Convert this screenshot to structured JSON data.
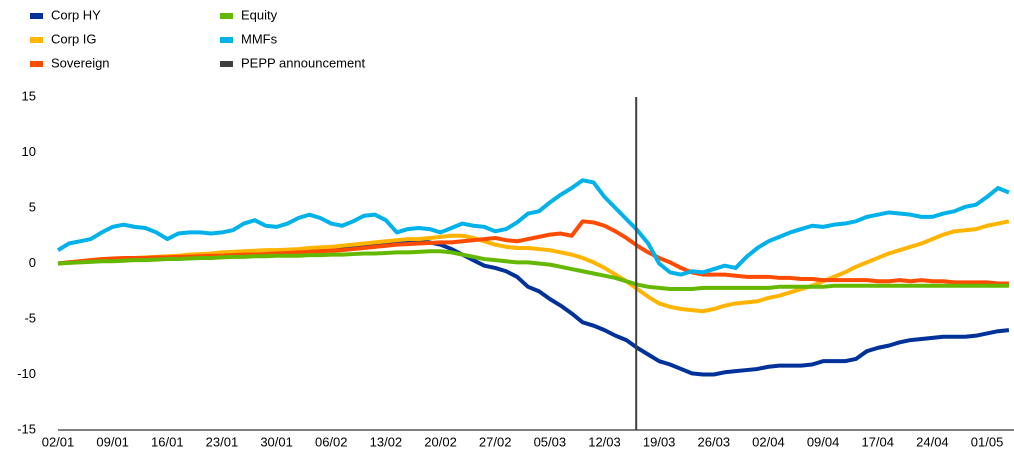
{
  "chart_data": {
    "type": "line",
    "categories": [
      "02/01",
      null,
      null,
      null,
      null,
      "09/01",
      null,
      null,
      null,
      null,
      "16/01",
      null,
      null,
      null,
      null,
      "23/01",
      null,
      null,
      null,
      null,
      "30/01",
      null,
      null,
      null,
      null,
      "06/02",
      null,
      null,
      null,
      null,
      "13/02",
      null,
      null,
      null,
      null,
      "20/02",
      null,
      null,
      null,
      null,
      "27/02",
      null,
      null,
      null,
      null,
      "05/03",
      null,
      null,
      null,
      null,
      "12/03",
      null,
      null,
      null,
      null,
      "19/03",
      null,
      null,
      null,
      null,
      "26/03",
      null,
      null,
      null,
      null,
      "02/04",
      null,
      null,
      null,
      null,
      "09/04",
      null,
      null,
      null,
      null,
      "17/04",
      null,
      null,
      null,
      null,
      "24/04",
      null,
      null,
      null,
      null,
      "01/05",
      null,
      null
    ],
    "series": [
      {
        "name": "Corp HY",
        "color": "#003299",
        "values": [
          0,
          0.1,
          0.15,
          0.2,
          0.25,
          0.3,
          0.3,
          0.35,
          0.4,
          0.4,
          0.45,
          0.5,
          0.5,
          0.55,
          0.6,
          0.6,
          0.65,
          0.7,
          0.7,
          0.8,
          0.85,
          0.9,
          1.0,
          1.1,
          1.2,
          1.3,
          1.4,
          1.5,
          1.6,
          1.6,
          1.7,
          1.8,
          1.9,
          2.0,
          1.9,
          1.7,
          1.3,
          0.8,
          0.3,
          -0.2,
          -0.4,
          -0.7,
          -1.2,
          -2.1,
          -2.5,
          -3.2,
          -3.8,
          -4.5,
          -5.3,
          -5.6,
          -6.0,
          -6.5,
          -6.9,
          -7.6,
          -8.2,
          -8.8,
          -9.1,
          -9.5,
          -9.9,
          -10.0,
          -10.0,
          -9.8,
          -9.7,
          -9.6,
          -9.5,
          -9.3,
          -9.2,
          -9.2,
          -9.2,
          -9.1,
          -8.8,
          -8.8,
          -8.8,
          -8.6,
          -7.9,
          -7.6,
          -7.4,
          -7.1,
          -6.9,
          -6.8,
          -6.7,
          -6.6,
          -6.6,
          -6.6,
          -6.5,
          -6.3,
          -6.1,
          -6.0
        ]
      },
      {
        "name": "Corp IG",
        "color": "#ffb400",
        "values": [
          0,
          0.1,
          0.2,
          0.3,
          0.35,
          0.4,
          0.45,
          0.5,
          0.55,
          0.6,
          0.65,
          0.7,
          0.8,
          0.85,
          0.9,
          1.0,
          1.05,
          1.1,
          1.15,
          1.2,
          1.2,
          1.25,
          1.3,
          1.4,
          1.45,
          1.5,
          1.6,
          1.7,
          1.8,
          1.9,
          2.0,
          2.1,
          2.2,
          2.2,
          2.3,
          2.4,
          2.5,
          2.5,
          2.3,
          2.0,
          1.7,
          1.5,
          1.4,
          1.4,
          1.3,
          1.2,
          1.0,
          0.8,
          0.5,
          0.1,
          -0.4,
          -1.0,
          -1.6,
          -2.3,
          -3.0,
          -3.6,
          -3.9,
          -4.1,
          -4.2,
          -4.3,
          -4.1,
          -3.8,
          -3.6,
          -3.5,
          -3.4,
          -3.1,
          -2.9,
          -2.6,
          -2.3,
          -2.0,
          -1.6,
          -1.2,
          -0.8,
          -0.3,
          0.1,
          0.5,
          0.9,
          1.2,
          1.5,
          1.8,
          2.2,
          2.6,
          2.9,
          3.0,
          3.1,
          3.4,
          3.6,
          3.8
        ]
      },
      {
        "name": "Sovereign",
        "color": "#ff4b00",
        "values": [
          0,
          0.1,
          0.2,
          0.3,
          0.4,
          0.45,
          0.5,
          0.5,
          0.5,
          0.55,
          0.55,
          0.6,
          0.6,
          0.65,
          0.7,
          0.7,
          0.75,
          0.8,
          0.8,
          0.85,
          0.9,
          0.95,
          1.0,
          1.05,
          1.1,
          1.15,
          1.2,
          1.3,
          1.4,
          1.5,
          1.6,
          1.7,
          1.75,
          1.8,
          1.85,
          1.9,
          1.9,
          2.0,
          2.1,
          2.2,
          2.3,
          2.1,
          2.0,
          2.2,
          2.4,
          2.6,
          2.7,
          2.5,
          3.8,
          3.7,
          3.4,
          2.9,
          2.3,
          1.6,
          1.0,
          0.5,
          0.1,
          -0.4,
          -0.8,
          -1.0,
          -1.0,
          -1.0,
          -1.1,
          -1.2,
          -1.2,
          -1.2,
          -1.3,
          -1.3,
          -1.4,
          -1.4,
          -1.5,
          -1.5,
          -1.5,
          -1.5,
          -1.5,
          -1.6,
          -1.6,
          -1.5,
          -1.6,
          -1.5,
          -1.6,
          -1.6,
          -1.7,
          -1.7,
          -1.7,
          -1.7,
          -1.8,
          -1.8
        ]
      },
      {
        "name": "Equity",
        "color": "#65b800",
        "values": [
          0,
          0.05,
          0.1,
          0.15,
          0.2,
          0.2,
          0.25,
          0.3,
          0.3,
          0.35,
          0.4,
          0.4,
          0.45,
          0.5,
          0.5,
          0.55,
          0.6,
          0.6,
          0.65,
          0.65,
          0.7,
          0.7,
          0.7,
          0.75,
          0.75,
          0.8,
          0.8,
          0.85,
          0.9,
          0.9,
          0.95,
          1.0,
          1.0,
          1.05,
          1.1,
          1.1,
          1.0,
          0.8,
          0.6,
          0.4,
          0.3,
          0.2,
          0.1,
          0.1,
          0.0,
          -0.1,
          -0.3,
          -0.5,
          -0.7,
          -0.9,
          -1.1,
          -1.3,
          -1.6,
          -1.9,
          -2.1,
          -2.2,
          -2.3,
          -2.3,
          -2.3,
          -2.2,
          -2.2,
          -2.2,
          -2.2,
          -2.2,
          -2.2,
          -2.2,
          -2.1,
          -2.1,
          -2.1,
          -2.1,
          -2.1,
          -2.0,
          -2.0,
          -2.0,
          -2.0,
          -2.0,
          -2.0,
          -2.0,
          -2.0,
          -2.0,
          -2.0,
          -2.0,
          -2.0,
          -2.0,
          -2.0,
          -2.0,
          -2.0,
          -2.0
        ]
      },
      {
        "name": "MMFs",
        "color": "#00b1ea",
        "values": [
          1.2,
          1.8,
          2.0,
          2.2,
          2.8,
          3.3,
          3.5,
          3.3,
          3.2,
          2.8,
          2.2,
          2.7,
          2.8,
          2.8,
          2.7,
          2.8,
          3.0,
          3.6,
          3.9,
          3.4,
          3.3,
          3.6,
          4.1,
          4.4,
          4.1,
          3.6,
          3.4,
          3.8,
          4.3,
          4.4,
          3.9,
          2.8,
          3.1,
          3.2,
          3.1,
          2.8,
          3.2,
          3.6,
          3.4,
          3.3,
          2.9,
          3.1,
          3.7,
          4.5,
          4.7,
          5.5,
          6.2,
          6.8,
          7.5,
          7.3,
          6.0,
          5.0,
          4.0,
          3.0,
          1.8,
          0.0,
          -0.8,
          -1.0,
          -0.7,
          -0.8,
          -0.5,
          -0.2,
          -0.4,
          0.6,
          1.4,
          2.0,
          2.4,
          2.8,
          3.1,
          3.4,
          3.3,
          3.5,
          3.6,
          3.8,
          4.2,
          4.4,
          4.6,
          4.5,
          4.4,
          4.2,
          4.2,
          4.5,
          4.7,
          5.1,
          5.3,
          6.0,
          6.8,
          6.4
        ]
      },
      {
        "name": "PEPP announcement",
        "color": "#404040",
        "x": 52.9
      }
    ],
    "ylim": [
      -15,
      15
    ],
    "yticks": [
      -15,
      -10,
      -5,
      0,
      5,
      10,
      15
    ],
    "grid": false
  }
}
